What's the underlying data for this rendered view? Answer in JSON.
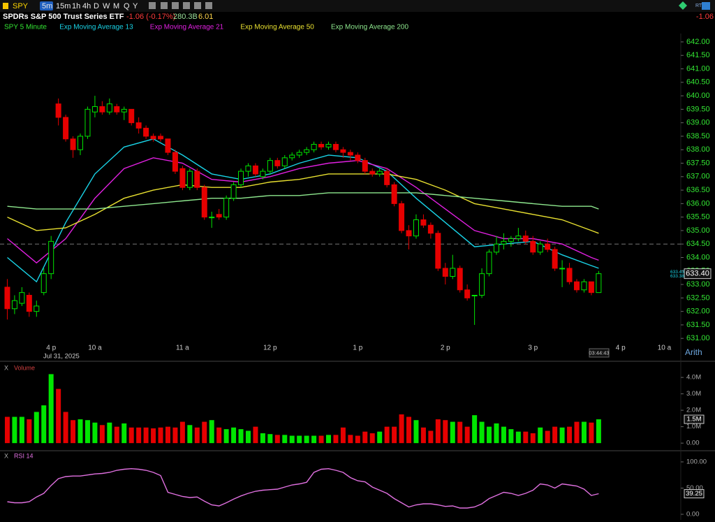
{
  "header": {
    "symbol": "SPY",
    "intervals": [
      "5m",
      "15m",
      "1h",
      "4h",
      "D",
      "W",
      "M",
      "Q",
      "Y"
    ],
    "name": "SPDRs S&P 500 Trust Series ETF",
    "change": "-1.06 (-0.17%)",
    "market_cap": "280.3B",
    "eps": "6.01",
    "rt": "RT",
    "right_change": "-1.06"
  },
  "chart_data": [
    {
      "type": "candlestick",
      "title": "SPY 5 Minute",
      "colors": {
        "up": "#00e600",
        "down": "#e60000"
      },
      "categories": [
        null,
        null,
        null,
        null,
        null,
        null,
        "4 p",
        null,
        null,
        null,
        null,
        null,
        "10 a",
        null,
        null,
        null,
        null,
        null,
        null,
        null,
        null,
        null,
        null,
        null,
        "11 a",
        null,
        null,
        null,
        null,
        null,
        null,
        null,
        null,
        null,
        null,
        null,
        "12 p",
        null,
        null,
        null,
        null,
        null,
        null,
        null,
        null,
        null,
        null,
        null,
        "1 p",
        null,
        null,
        null,
        null,
        null,
        null,
        null,
        null,
        null,
        null,
        null,
        "2 p",
        null,
        null,
        null,
        null,
        null,
        null,
        null,
        null,
        null,
        null,
        null,
        "3 p",
        null,
        null,
        null,
        null,
        null,
        null,
        null,
        null,
        null,
        null,
        null,
        "4 p",
        null,
        null,
        null,
        null,
        null,
        "10 a"
      ],
      "open": [
        632.9,
        632.1,
        632.3,
        632.6,
        632.0,
        632.7,
        633.4,
        639.7,
        639.2,
        638.4,
        638.0,
        638.5,
        639.4,
        639.6,
        639.4,
        639.6,
        639.4,
        639.5,
        639.0,
        638.8,
        638.5,
        638.5,
        638.4,
        637.9,
        637.3,
        636.6,
        637.2,
        636.6,
        635.5,
        635.6,
        635.5,
        636.2,
        636.7,
        637.2,
        637.4,
        637.0,
        637.2,
        637.6,
        637.4,
        637.7,
        637.8,
        637.9,
        638.0,
        638.2,
        638.1,
        638.2,
        638.0,
        637.9,
        637.8,
        637.6,
        637.2,
        637.1,
        637.2,
        636.7,
        636.0,
        635.0,
        634.8,
        635.4,
        635.2,
        634.9,
        633.6,
        633.3,
        633.6,
        632.8,
        632.6,
        632.6,
        633.4,
        634.2,
        634.5,
        634.6,
        634.7,
        634.8,
        634.6,
        634.2,
        634.5,
        634.3,
        633.6,
        633.6,
        633.1,
        632.8,
        633.1,
        632.7,
        null,
        null,
        null,
        null,
        null,
        null,
        null,
        null,
        null
      ],
      "high": [
        633.2,
        632.6,
        632.9,
        632.7,
        632.4,
        633.6,
        634.8,
        639.9,
        639.3,
        638.5,
        638.6,
        639.6,
        640.0,
        639.8,
        639.9,
        639.7,
        639.6,
        639.5,
        639.2,
        638.9,
        638.6,
        638.6,
        638.4,
        638.0,
        637.4,
        637.3,
        637.3,
        636.7,
        635.7,
        635.8,
        636.3,
        636.8,
        637.3,
        637.5,
        637.5,
        637.3,
        637.7,
        637.7,
        637.8,
        637.9,
        638.0,
        638.1,
        638.3,
        638.3,
        638.3,
        638.3,
        638.1,
        638.0,
        637.9,
        637.7,
        637.3,
        637.3,
        637.3,
        636.8,
        636.1,
        635.2,
        635.6,
        635.6,
        635.3,
        635.0,
        633.8,
        634.1,
        633.7,
        633.0,
        632.6,
        633.6,
        634.3,
        634.8,
        634.9,
        634.8,
        635.1,
        635.0,
        634.8,
        634.6,
        634.7,
        634.4,
        633.9,
        633.8,
        633.2,
        633.2,
        633.1,
        633.5,
        null,
        null,
        null,
        null,
        null,
        null,
        null,
        null,
        null
      ],
      "low": [
        631.7,
        631.9,
        632.2,
        631.8,
        631.8,
        632.6,
        633.2,
        638.9,
        638.3,
        637.7,
        637.8,
        638.4,
        639.2,
        639.3,
        639.3,
        639.3,
        639.1,
        638.9,
        638.6,
        638.4,
        638.3,
        638.3,
        637.8,
        637.1,
        636.5,
        636.5,
        636.5,
        635.4,
        635.1,
        635.4,
        635.4,
        636.1,
        636.6,
        637.0,
        637.0,
        636.9,
        637.1,
        637.3,
        637.3,
        637.6,
        637.7,
        637.8,
        637.9,
        638.0,
        638.0,
        637.9,
        637.7,
        637.6,
        637.5,
        637.1,
        637.0,
        637.0,
        636.6,
        635.9,
        634.9,
        634.3,
        634.7,
        635.1,
        634.7,
        633.5,
        633.0,
        633.2,
        632.7,
        632.4,
        631.5,
        632.5,
        633.3,
        634.1,
        634.3,
        634.4,
        634.6,
        634.5,
        634.1,
        634.1,
        634.2,
        633.5,
        632.9,
        633.0,
        632.7,
        632.7,
        632.6,
        632.7,
        null,
        null,
        null,
        null,
        null,
        null,
        null,
        null,
        null
      ],
      "close": [
        632.1,
        632.4,
        632.7,
        632.0,
        632.2,
        633.4,
        634.6,
        639.2,
        638.4,
        638.0,
        638.5,
        639.5,
        639.6,
        639.4,
        639.7,
        639.4,
        639.5,
        639.0,
        638.8,
        638.5,
        638.4,
        638.4,
        637.9,
        637.2,
        636.6,
        637.2,
        636.6,
        635.5,
        635.5,
        635.5,
        636.2,
        636.7,
        637.2,
        637.4,
        637.1,
        637.2,
        637.6,
        637.4,
        637.7,
        637.8,
        637.9,
        638.0,
        638.2,
        638.1,
        638.2,
        638.0,
        637.9,
        637.8,
        637.6,
        637.2,
        637.1,
        637.2,
        636.7,
        636.0,
        635.0,
        634.8,
        635.4,
        635.2,
        634.9,
        633.6,
        633.3,
        633.6,
        632.8,
        632.5,
        632.6,
        633.4,
        634.2,
        634.5,
        634.6,
        634.7,
        634.8,
        634.6,
        634.2,
        634.5,
        634.3,
        633.6,
        633.6,
        633.1,
        632.8,
        633.1,
        632.7,
        633.4,
        null,
        null,
        null,
        null,
        null,
        null,
        null,
        null,
        null
      ],
      "series": [
        {
          "name": "Exp Moving Average 13",
          "color": "#19d3e6",
          "x": [
            0,
            4,
            8,
            12,
            16,
            20,
            24,
            28,
            32,
            36,
            40,
            44,
            48,
            52,
            56,
            60,
            64,
            68,
            72,
            76,
            80,
            81
          ],
          "values": [
            634.0,
            633.1,
            635.3,
            637.1,
            638.1,
            638.4,
            637.8,
            637.1,
            636.9,
            637.1,
            637.5,
            637.8,
            637.7,
            637.2,
            636.2,
            635.3,
            634.4,
            634.5,
            634.6,
            634.1,
            633.7,
            633.6
          ]
        },
        {
          "name": "Exp Moving Average 21",
          "color": "#e020e0",
          "x": [
            0,
            4,
            8,
            12,
            16,
            20,
            24,
            28,
            32,
            36,
            40,
            44,
            48,
            52,
            56,
            60,
            64,
            68,
            72,
            76,
            80,
            81
          ],
          "values": [
            634.7,
            633.8,
            634.7,
            636.2,
            637.3,
            637.7,
            637.5,
            636.9,
            636.8,
            637.0,
            637.3,
            637.5,
            637.6,
            637.3,
            636.6,
            635.8,
            635.0,
            634.7,
            634.7,
            634.5,
            634.0,
            633.9
          ]
        },
        {
          "name": "Exp Moving Average 50",
          "color": "#e8e030",
          "x": [
            0,
            4,
            8,
            12,
            16,
            20,
            24,
            28,
            32,
            36,
            40,
            44,
            48,
            52,
            56,
            60,
            64,
            68,
            72,
            76,
            80,
            81
          ],
          "values": [
            635.5,
            635.0,
            635.1,
            635.6,
            636.2,
            636.5,
            636.7,
            636.6,
            636.6,
            636.8,
            636.9,
            637.1,
            637.1,
            637.1,
            636.9,
            636.5,
            636.0,
            635.8,
            635.6,
            635.4,
            635.0,
            634.9
          ]
        },
        {
          "name": "Exp Moving Average 200",
          "color": "#8ee88e",
          "x": [
            0,
            4,
            8,
            12,
            16,
            20,
            24,
            28,
            32,
            36,
            40,
            44,
            48,
            52,
            56,
            60,
            64,
            68,
            72,
            76,
            80,
            81
          ],
          "values": [
            635.9,
            635.8,
            635.8,
            635.8,
            635.9,
            636.0,
            636.1,
            636.2,
            636.2,
            636.3,
            636.3,
            636.4,
            636.4,
            636.4,
            636.4,
            636.3,
            636.2,
            636.1,
            636.0,
            635.9,
            635.9,
            635.8
          ]
        }
      ],
      "reference_line": 634.5,
      "price_tags": [
        {
          "value": 633.4,
          "label": "633.40"
        },
        {
          "value": 633.43,
          "label": "633.43"
        },
        {
          "value": 633.38,
          "label": "633.38"
        }
      ],
      "date_label": "Jul 31, 2025",
      "countdown": "03:44:43",
      "scale_mode": "Arith",
      "ylim": [
        630.85,
        642.31
      ],
      "yticks": [
        {
          "value": 631,
          "label": "631.00"
        },
        {
          "value": 631.5,
          "label": "631.50"
        },
        {
          "value": 632,
          "label": "632.00"
        },
        {
          "value": 632.5,
          "label": "632.50"
        },
        {
          "value": 633,
          "label": "633.00"
        },
        {
          "value": 633.5,
          "label": "633.50"
        },
        {
          "value": 634,
          "label": "634.00"
        },
        {
          "value": 634.5,
          "label": "634.50"
        },
        {
          "value": 635,
          "label": "635.00"
        },
        {
          "value": 635.5,
          "label": "635.50"
        },
        {
          "value": 636,
          "label": "636.00"
        },
        {
          "value": 636.5,
          "label": "636.50"
        },
        {
          "value": 637,
          "label": "637.00"
        },
        {
          "value": 637.5,
          "label": "637.50"
        },
        {
          "value": 638,
          "label": "638.00"
        },
        {
          "value": 638.5,
          "label": "638.50"
        },
        {
          "value": 639,
          "label": "639.00"
        },
        {
          "value": 639.5,
          "label": "639.50"
        },
        {
          "value": 640,
          "label": "640.00"
        },
        {
          "value": 640.5,
          "label": "640.50"
        },
        {
          "value": 641,
          "label": "641.00"
        },
        {
          "value": 641.5,
          "label": "641.50"
        },
        {
          "value": 642,
          "label": "642.00"
        }
      ]
    },
    {
      "type": "bar",
      "title": "Volume",
      "close_label": "X",
      "last_label": "1.5M",
      "values": [
        1600000,
        1600000,
        1600000,
        1450000,
        1900000,
        2300000,
        4200000,
        3300000,
        1900000,
        1400000,
        1450000,
        1400000,
        1250000,
        1100000,
        1250000,
        1000000,
        1200000,
        950000,
        950000,
        950000,
        900000,
        950000,
        1000000,
        950000,
        1300000,
        1100000,
        950000,
        1300000,
        1400000,
        950000,
        850000,
        950000,
        850000,
        750000,
        1000000,
        600000,
        550000,
        500000,
        500000,
        450000,
        450000,
        450000,
        450000,
        450000,
        500000,
        500000,
        950000,
        500000,
        450000,
        700000,
        600000,
        700000,
        1000000,
        1000000,
        1750000,
        1600000,
        1400000,
        950000,
        750000,
        1450000,
        1400000,
        1300000,
        1300000,
        1000000,
        1700000,
        1300000,
        1000000,
        1200000,
        1000000,
        850000,
        700000,
        700000,
        600000,
        950000,
        750000,
        1000000,
        950000,
        1000000,
        1300000,
        1300000,
        1250000,
        1450000
      ],
      "ylim": [
        -250000,
        4770000
      ],
      "yticks": [
        {
          "value": 0,
          "label": "0.00"
        },
        {
          "value": 1000000,
          "label": "1.0M"
        },
        {
          "value": 2000000,
          "label": "2.0M"
        },
        {
          "value": 3000000,
          "label": "3.0M"
        },
        {
          "value": 4000000,
          "label": "4.0M"
        }
      ]
    },
    {
      "type": "line",
      "title": "RSI 14",
      "close_label": "X",
      "color": "#e070e0",
      "values": [
        24,
        22,
        22,
        24,
        33,
        40,
        55,
        68,
        72,
        73,
        73,
        75,
        77,
        78,
        80,
        84,
        86,
        87,
        86,
        84,
        80,
        74,
        42,
        38,
        34,
        32,
        33,
        25,
        18,
        16,
        22,
        29,
        35,
        40,
        44,
        46,
        47,
        48,
        52,
        56,
        58,
        61,
        80,
        86,
        87,
        84,
        80,
        70,
        64,
        62,
        52,
        46,
        40,
        30,
        22,
        14,
        18,
        20,
        20,
        18,
        15,
        16,
        12,
        12,
        14,
        20,
        30,
        36,
        42,
        40,
        36,
        40,
        46,
        58,
        56,
        50,
        58,
        56,
        54,
        48,
        36,
        39.25
      ],
      "ylim": [
        -10.7,
        117.3
      ],
      "yticks": [
        {
          "value": 0,
          "label": "0.00"
        },
        {
          "value": 50,
          "label": "50.00"
        },
        {
          "value": 100,
          "label": "100.00"
        }
      ]
    }
  ]
}
